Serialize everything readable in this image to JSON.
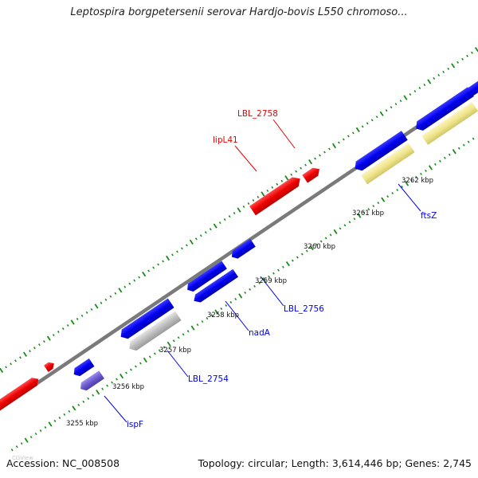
{
  "title": "Leptospira borgpetersenii serovar Hardjo-bovis L550 chromoso...",
  "footer": {
    "accession": "Accession: NC_008508",
    "stats": "Topology: circular; Length: 3,614,446 bp; Genes: 2,745"
  },
  "watermark": "CGView",
  "colors": {
    "forward_gene": "#ee0000",
    "reverse_gene": "#0000ee",
    "reverse_gene_light": "#6a5acd",
    "rna_gene": "#bebebe",
    "other_gene": "#f0e68c",
    "backbone": "#808080",
    "tick": "#228b22"
  },
  "scale_labels": [
    "3255 kbp",
    "3256 kbp",
    "3257 kbp",
    "3258 kbp",
    "3259 kbp",
    "3260 kbp",
    "3261 kbp",
    "3262 kbp"
  ],
  "gene_labels": {
    "lbl_2758": "LBL_2758",
    "lipl41": "lipL41",
    "ftsz": "ftsZ",
    "lbl_2756": "LBL_2756",
    "nada": "nadA",
    "lbl_2754": "LBL_2754",
    "ispf": "ispF"
  }
}
